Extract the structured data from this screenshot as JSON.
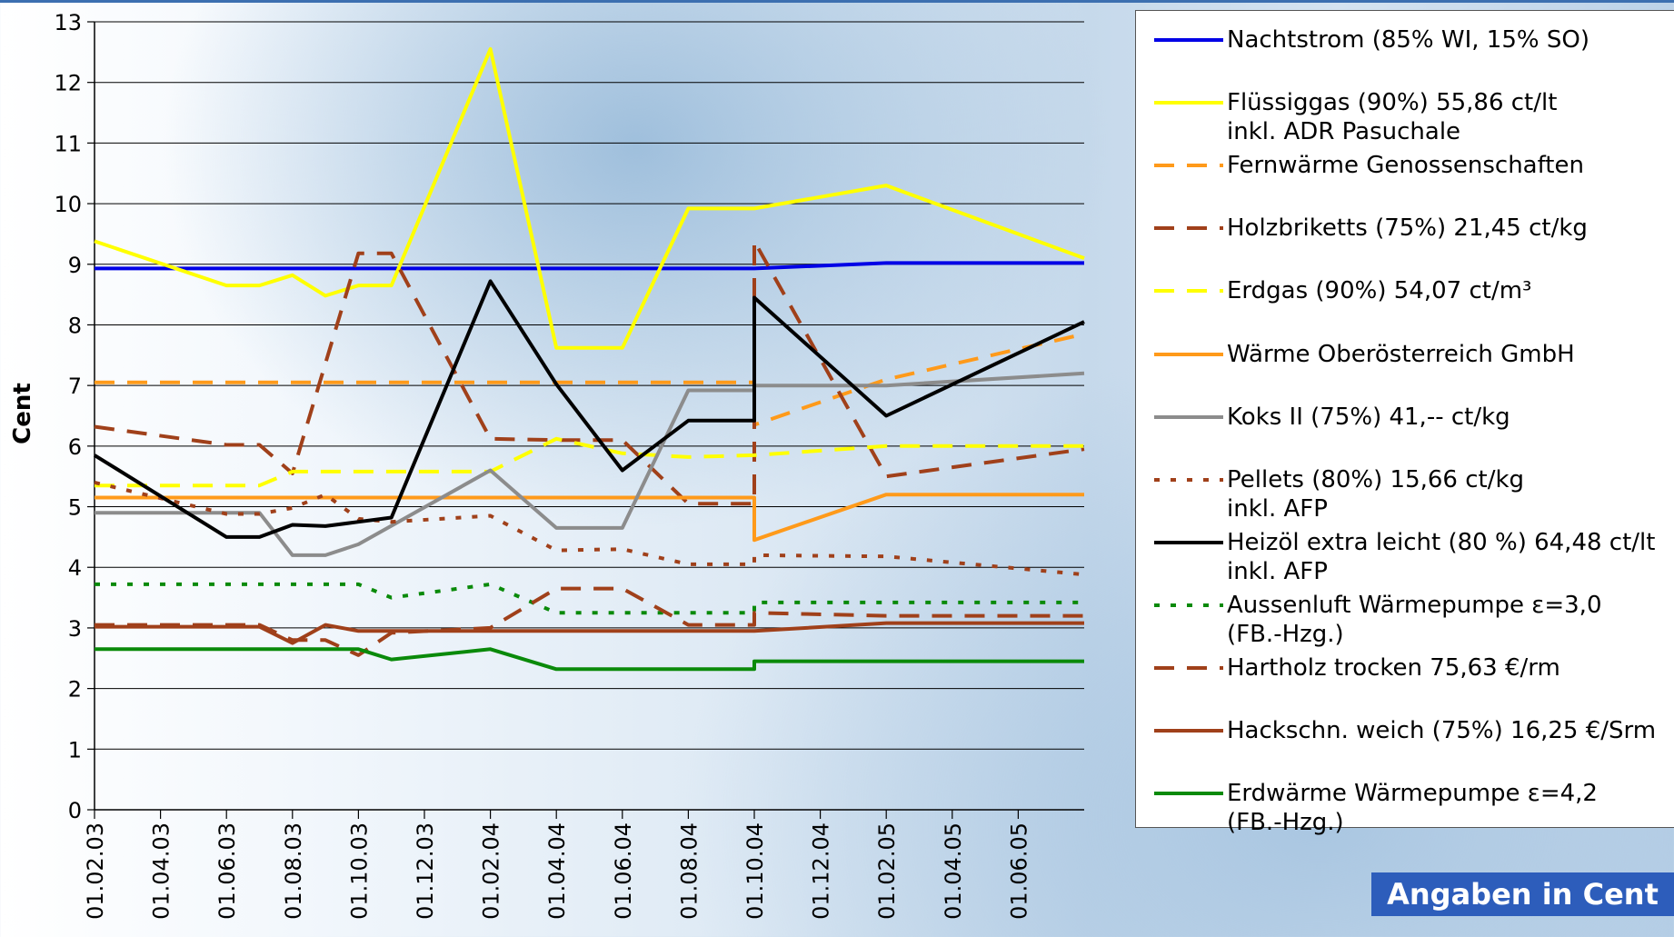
{
  "chart_data": {
    "type": "line",
    "title": "",
    "xlabel": "",
    "ylabel": "Cent",
    "ylim": [
      0,
      13
    ],
    "yticks": [
      0,
      1,
      2,
      3,
      4,
      5,
      6,
      7,
      8,
      9,
      10,
      11,
      12,
      13
    ],
    "xlim": [
      "01.02.03",
      "01.08.05"
    ],
    "xtick_labels": [
      "01.02.03",
      "01.04.03",
      "01.06.03",
      "01.08.03",
      "01.10.03",
      "01.12.03",
      "01.02.04",
      "01.04.04",
      "01.06.04",
      "01.08.04",
      "01.10.04",
      "01.12.04",
      "01.02.05",
      "01.04.05",
      "01.06.05"
    ],
    "grid": true,
    "legend_position": "right",
    "note": "Angaben in Cent",
    "series": [
      {
        "name": "Nachtstrom (85% WI, 15% SO)",
        "color": "#0000e6",
        "dash": "solid",
        "points": [
          [
            "01.02.03",
            8.93
          ],
          [
            "01.10.04",
            8.93
          ],
          [
            "01.02.05",
            9.02
          ],
          [
            "01.08.05",
            9.02
          ]
        ]
      },
      {
        "name": "Flüssiggas (90%) 55,86 ct/lt\ninkl. ADR Pasuchale",
        "color": "#ffff00",
        "dash": "solid",
        "points": [
          [
            "01.02.03",
            9.38
          ],
          [
            "01.06.03",
            8.65
          ],
          [
            "01.07.03",
            8.65
          ],
          [
            "01.08.03",
            8.82
          ],
          [
            "01.09.03",
            8.48
          ],
          [
            "01.10.03",
            8.65
          ],
          [
            "01.11.03",
            8.65
          ],
          [
            "01.02.04",
            12.55
          ],
          [
            "01.04.04",
            7.62
          ],
          [
            "01.06.04",
            7.62
          ],
          [
            "01.08.04",
            9.92
          ],
          [
            "01.10.04",
            9.92
          ],
          [
            "01.02.05",
            10.3
          ],
          [
            "01.08.05",
            9.1
          ]
        ]
      },
      {
        "name": "Fernwärme Genossenschaften",
        "color": "#ff9a1a",
        "dash": "dash",
        "points": [
          [
            "01.02.03",
            7.05
          ],
          [
            "01.10.04",
            7.05
          ],
          [
            "01.10.04",
            6.35
          ],
          [
            "01.02.05",
            7.1
          ],
          [
            "01.08.05",
            7.85
          ]
        ]
      },
      {
        "name": "Holzbriketts (75%) 21,45 ct/kg",
        "color": "#a0401a",
        "dash": "dash",
        "points": [
          [
            "01.02.03",
            6.32
          ],
          [
            "01.06.03",
            6.02
          ],
          [
            "01.07.03",
            6.02
          ],
          [
            "01.08.03",
            5.55
          ],
          [
            "01.10.03",
            9.18
          ],
          [
            "01.11.03",
            9.18
          ],
          [
            "01.02.04",
            6.12
          ],
          [
            "01.04.04",
            6.1
          ],
          [
            "01.06.04",
            6.1
          ],
          [
            "01.08.04",
            5.05
          ],
          [
            "01.10.04",
            5.05
          ],
          [
            "01.10.04",
            9.38
          ],
          [
            "01.02.05",
            5.5
          ],
          [
            "01.08.05",
            5.95
          ]
        ]
      },
      {
        "name": "Erdgas (90%) 54,07 ct/m³",
        "color": "#ffff00",
        "dash": "dash",
        "points": [
          [
            "01.02.03",
            5.35
          ],
          [
            "01.07.03",
            5.35
          ],
          [
            "01.08.03",
            5.58
          ],
          [
            "01.02.04",
            5.58
          ],
          [
            "01.04.04",
            6.12
          ],
          [
            "01.06.04",
            5.88
          ],
          [
            "01.08.04",
            5.82
          ],
          [
            "01.10.04",
            5.85
          ],
          [
            "01.02.05",
            6.0
          ],
          [
            "01.08.05",
            6.0
          ]
        ]
      },
      {
        "name": "Wärme Oberösterreich GmbH",
        "color": "#ff9a1a",
        "dash": "solid",
        "points": [
          [
            "01.02.03",
            5.15
          ],
          [
            "01.10.04",
            5.15
          ],
          [
            "01.10.04",
            4.45
          ],
          [
            "01.02.05",
            5.2
          ],
          [
            "01.08.05",
            5.2
          ]
        ]
      },
      {
        "name": "Koks II (75%) 41,-- ct/kg",
        "color": "#8c8c8c",
        "dash": "solid",
        "points": [
          [
            "01.02.03",
            4.9
          ],
          [
            "01.07.03",
            4.9
          ],
          [
            "01.08.03",
            4.2
          ],
          [
            "01.09.03",
            4.2
          ],
          [
            "01.10.03",
            4.38
          ],
          [
            "01.02.04",
            5.6
          ],
          [
            "01.04.04",
            4.65
          ],
          [
            "01.06.04",
            4.65
          ],
          [
            "01.08.04",
            6.92
          ],
          [
            "01.10.04",
            6.92
          ],
          [
            "01.10.04",
            7.0
          ],
          [
            "01.02.05",
            7.0
          ],
          [
            "01.08.05",
            7.2
          ]
        ]
      },
      {
        "name": "Pellets (80%) 15,66 ct/kg\ninkl. AFP",
        "color": "#a0401a",
        "dash": "dot",
        "points": [
          [
            "01.02.03",
            5.4
          ],
          [
            "01.06.03",
            4.88
          ],
          [
            "01.07.03",
            4.88
          ],
          [
            "01.08.03",
            4.98
          ],
          [
            "01.09.03",
            5.2
          ],
          [
            "01.10.03",
            4.8
          ],
          [
            "01.11.03",
            4.75
          ],
          [
            "01.02.04",
            4.85
          ],
          [
            "01.04.04",
            4.28
          ],
          [
            "01.06.04",
            4.3
          ],
          [
            "01.08.04",
            4.05
          ],
          [
            "01.10.04",
            4.05
          ],
          [
            "01.10.04",
            4.2
          ],
          [
            "01.02.05",
            4.18
          ],
          [
            "01.08.05",
            3.88
          ]
        ]
      },
      {
        "name": "Heizöl extra leicht (80 %) 64,48 ct/lt\ninkl. AFP",
        "color": "#000000",
        "dash": "solid",
        "points": [
          [
            "01.02.03",
            5.85
          ],
          [
            "01.06.03",
            4.5
          ],
          [
            "01.07.03",
            4.5
          ],
          [
            "01.08.03",
            4.7
          ],
          [
            "01.09.03",
            4.68
          ],
          [
            "01.10.03",
            4.75
          ],
          [
            "01.11.03",
            4.82
          ],
          [
            "01.02.04",
            8.72
          ],
          [
            "01.04.04",
            7.02
          ],
          [
            "01.06.04",
            5.6
          ],
          [
            "01.08.04",
            6.42
          ],
          [
            "01.10.04",
            6.42
          ],
          [
            "01.10.04",
            8.45
          ],
          [
            "01.02.05",
            6.5
          ],
          [
            "01.08.05",
            8.05
          ]
        ]
      },
      {
        "name": "Aussenluft Wärmepumpe ε=3,0\n(FB.-Hzg.)",
        "color": "#0a8a0a",
        "dash": "dot",
        "points": [
          [
            "01.02.03",
            3.72
          ],
          [
            "01.10.03",
            3.72
          ],
          [
            "01.11.03",
            3.5
          ],
          [
            "01.02.04",
            3.72
          ],
          [
            "01.04.04",
            3.25
          ],
          [
            "01.10.04",
            3.25
          ],
          [
            "01.10.04",
            3.42
          ],
          [
            "01.08.05",
            3.42
          ]
        ]
      },
      {
        "name": "Hartholz trocken 75,63 €/rm",
        "color": "#a0401a",
        "dash": "dash",
        "points": [
          [
            "01.02.03",
            3.05
          ],
          [
            "01.07.03",
            3.05
          ],
          [
            "01.08.03",
            2.8
          ],
          [
            "01.09.03",
            2.8
          ],
          [
            "01.10.03",
            2.55
          ],
          [
            "01.11.03",
            2.92
          ],
          [
            "01.02.04",
            3.0
          ],
          [
            "01.04.04",
            3.65
          ],
          [
            "01.06.04",
            3.65
          ],
          [
            "01.08.04",
            3.05
          ],
          [
            "01.10.04",
            3.05
          ],
          [
            "01.10.04",
            3.25
          ],
          [
            "01.02.05",
            3.2
          ],
          [
            "01.08.05",
            3.2
          ]
        ]
      },
      {
        "name": "Hackschn. weich (75%) 16,25 €/Srm",
        "color": "#a0401a",
        "dash": "solid",
        "points": [
          [
            "01.02.03",
            3.02
          ],
          [
            "01.07.03",
            3.02
          ],
          [
            "01.08.03",
            2.75
          ],
          [
            "01.09.03",
            3.05
          ],
          [
            "01.10.03",
            2.95
          ],
          [
            "01.10.04",
            2.95
          ],
          [
            "01.02.05",
            3.08
          ],
          [
            "01.08.05",
            3.08
          ]
        ]
      },
      {
        "name": "Erdwärme Wärmepumpe ε=4,2\n(FB.-Hzg.)",
        "color": "#0a8a0a",
        "dash": "solid",
        "points": [
          [
            "01.02.03",
            2.65
          ],
          [
            "01.10.03",
            2.65
          ],
          [
            "01.11.03",
            2.48
          ],
          [
            "01.02.04",
            2.65
          ],
          [
            "01.04.04",
            2.32
          ],
          [
            "01.10.04",
            2.32
          ],
          [
            "01.10.04",
            2.45
          ],
          [
            "01.08.05",
            2.45
          ]
        ]
      }
    ]
  }
}
